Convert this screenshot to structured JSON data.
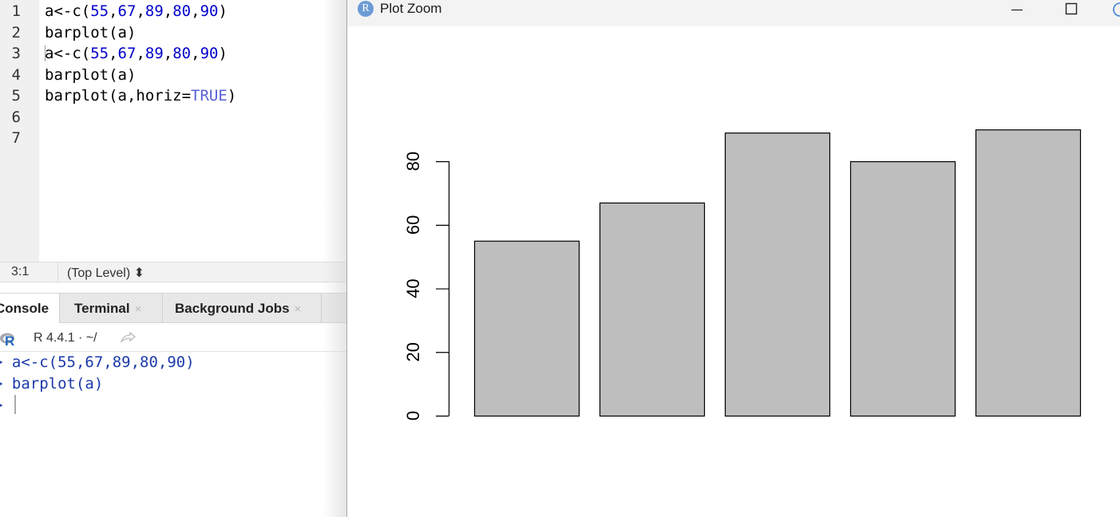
{
  "editor": {
    "line_numbers": [
      "1",
      "2",
      "3",
      "4",
      "5",
      "6",
      "7"
    ],
    "lines": [
      [
        {
          "t": "a<-c(",
          "k": "op"
        },
        {
          "t": "55",
          "k": "num"
        },
        {
          "t": ",",
          "k": "op"
        },
        {
          "t": "67",
          "k": "num"
        },
        {
          "t": ",",
          "k": "op"
        },
        {
          "t": "89",
          "k": "num"
        },
        {
          "t": ",",
          "k": "op"
        },
        {
          "t": "80",
          "k": "num"
        },
        {
          "t": ",",
          "k": "op"
        },
        {
          "t": "90",
          "k": "num"
        },
        {
          "t": ")",
          "k": "op"
        }
      ],
      [
        {
          "t": "barplot(a)",
          "k": "op"
        }
      ],
      [
        {
          "t": "a<-c(",
          "k": "op"
        },
        {
          "t": "55",
          "k": "num"
        },
        {
          "t": ",",
          "k": "op"
        },
        {
          "t": "67",
          "k": "num"
        },
        {
          "t": ",",
          "k": "op"
        },
        {
          "t": "89",
          "k": "num"
        },
        {
          "t": ",",
          "k": "op"
        },
        {
          "t": "80",
          "k": "num"
        },
        {
          "t": ",",
          "k": "op"
        },
        {
          "t": "90",
          "k": "num"
        },
        {
          "t": ")",
          "k": "op"
        }
      ],
      [
        {
          "t": "barplot(a)",
          "k": "op"
        }
      ],
      [
        {
          "t": "barplot(a,horiz=",
          "k": "op"
        },
        {
          "t": "TRUE",
          "k": "const"
        },
        {
          "t": ")",
          "k": "op"
        }
      ]
    ],
    "cursor_position": "3:1",
    "scope": "(Top Level) ⬍"
  },
  "console": {
    "tabs": [
      {
        "label": "Console",
        "closable": false
      },
      {
        "label": "Terminal",
        "closable": true
      },
      {
        "label": "Background Jobs",
        "closable": true
      }
    ],
    "close_glyph": "×",
    "r_version": "R 4.4.1 · ~/",
    "lines": [
      "> a<-c(55,67,89,80,90)",
      "> barplot(a)",
      ">"
    ]
  },
  "plot_window": {
    "title": "Plot Zoom",
    "icon_letter": "R",
    "buttons": [
      "minimize",
      "maximize",
      "close"
    ]
  },
  "chart_data": {
    "type": "bar",
    "categories": [
      "",
      "",
      "",
      "",
      ""
    ],
    "values": [
      55,
      67,
      89,
      80,
      90
    ],
    "title": "",
    "xlabel": "",
    "ylabel": "",
    "ylim": [
      0,
      90
    ],
    "yticks": [
      0,
      20,
      40,
      60,
      80
    ],
    "bar_color": "#bebebe",
    "grid": false,
    "legend": "none"
  },
  "colors": {
    "code_number": "#0000cd",
    "code_constant": "#5861d6",
    "console_input": "#1c3aa9"
  }
}
